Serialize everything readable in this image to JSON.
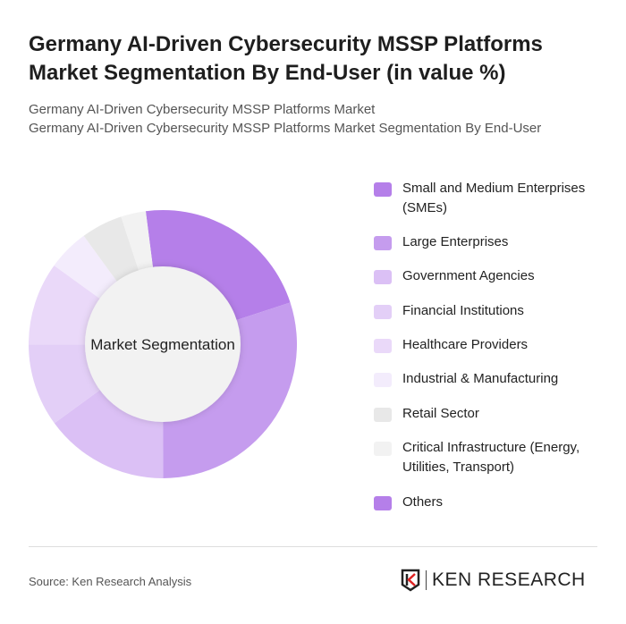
{
  "header": {
    "title": "Germany AI-Driven Cybersecurity MSSP Platforms Market Segmentation By End-User (in value %)",
    "subtitle_1": "Germany AI-Driven Cybersecurity MSSP Platforms Market",
    "subtitle_2": "Germany AI-Driven Cybersecurity MSSP Platforms Market Segmentation By End-User"
  },
  "chart_data": {
    "type": "pie",
    "variant": "donut",
    "center_label": "Market Segmentation",
    "legend_position": "right",
    "categories": [
      "Small and Medium Enterprises (SMEs)",
      "Large Enterprises",
      "Government Agencies",
      "Financial Institutions",
      "Healthcare Providers",
      "Industrial & Manufacturing",
      "Retail Sector",
      "Critical Infrastructure (Energy, Utilities, Transport)",
      "Others"
    ],
    "values": [
      22,
      30,
      15,
      10,
      10,
      5,
      5,
      3,
      0
    ],
    "colors": [
      "#b57fe9",
      "#c59cee",
      "#dbc0f5",
      "#e3cff7",
      "#ead9f9",
      "#f3ecfc",
      "#e8e8e8",
      "#f2f2f2",
      "#b57fe9"
    ]
  },
  "footer": {
    "source": "Source: Ken Research Analysis",
    "logo_text": "KEN RESEARCH"
  }
}
